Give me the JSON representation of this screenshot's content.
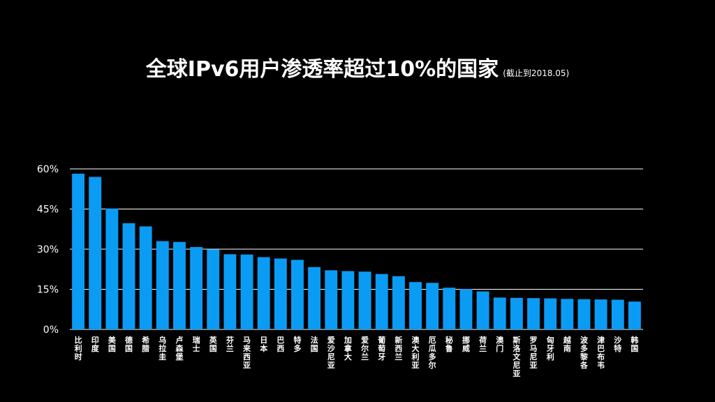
{
  "chart_data": {
    "type": "bar",
    "title": "全球IPv6用户渗透率超过10%的国家",
    "subtitle": "(截止到2018.05)",
    "xlabel": "",
    "ylabel": "",
    "ylim": [
      0,
      60
    ],
    "yticks": [
      0,
      15,
      30,
      45,
      60
    ],
    "ytick_labels": [
      "0%",
      "15%",
      "30%",
      "45%",
      "60%"
    ],
    "grid": true,
    "categories": [
      "比利时",
      "印度",
      "美国",
      "德国",
      "希腊",
      "乌拉圭",
      "卢森堡",
      "瑞士",
      "英国",
      "芬兰",
      "马来西亚",
      "日本",
      "巴西",
      "特多",
      "法国",
      "爱沙尼亚",
      "加拿大",
      "爱尔兰",
      "葡萄牙",
      "新西兰",
      "澳大利亚",
      "厄瓜多尔",
      "秘鲁",
      "挪威",
      "荷兰",
      "澳门",
      "斯洛文尼亚",
      "罗马尼亚",
      "匈牙利",
      "越南",
      "波多黎各",
      "津巴布韦",
      "沙特",
      "韩国"
    ],
    "values": [
      58.2,
      57.0,
      45.2,
      39.7,
      38.5,
      33.0,
      32.7,
      30.8,
      29.9,
      28.1,
      28.0,
      27.0,
      26.5,
      26.0,
      23.3,
      22.1,
      21.8,
      21.6,
      20.7,
      19.9,
      17.7,
      17.4,
      15.6,
      15.1,
      14.2,
      11.9,
      11.8,
      11.7,
      11.6,
      11.4,
      11.3,
      11.2,
      11.1,
      10.4
    ],
    "bar_color": "#0a9cf5",
    "grid_color": "#ffffff"
  }
}
